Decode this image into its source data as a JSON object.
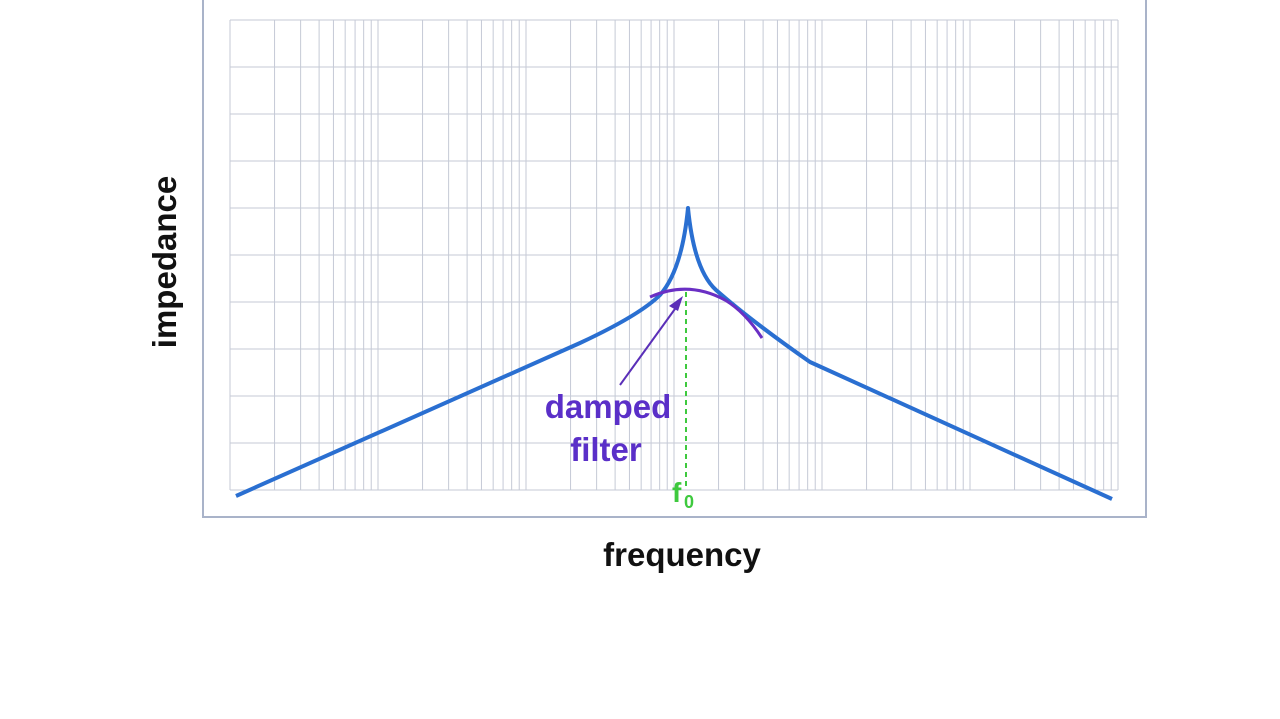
{
  "axes": {
    "y_label": "impedance",
    "x_label": "frequency"
  },
  "annotations": {
    "damped_filter": [
      "damped",
      "filter"
    ],
    "resonance": {
      "symbol": "f",
      "subscript": "0"
    }
  }
}
